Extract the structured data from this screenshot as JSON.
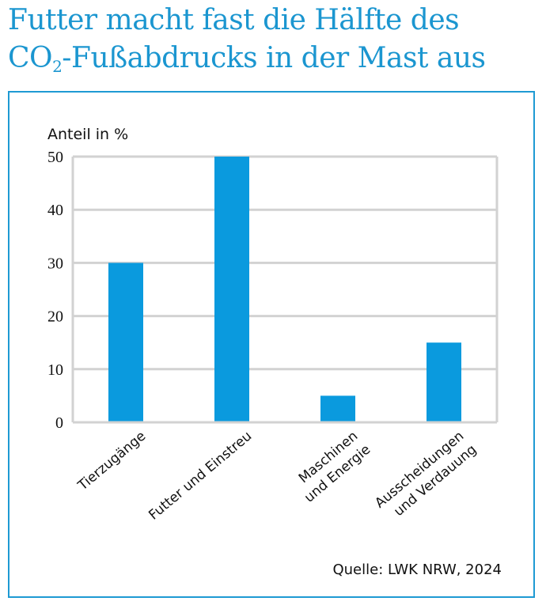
{
  "title_line1": "Futter macht fast die Hälfte des",
  "title_line2_pre": "CO",
  "title_line2_sub": "2",
  "title_line2_post": "-Fußabdrucks in der Mast aus",
  "chart_data": {
    "type": "bar",
    "ylabel": "Anteil in %",
    "ylim": [
      0,
      50
    ],
    "yticks": [
      "0",
      "10",
      "20",
      "30",
      "40",
      "50"
    ],
    "grid": true,
    "categories": [
      [
        "Tierzugänge"
      ],
      [
        "Futter und Einstreu"
      ],
      [
        "Maschinen",
        "und Energie"
      ],
      [
        "Ausscheidungen",
        "und Verdauung"
      ]
    ],
    "values": [
      30,
      50,
      5,
      15
    ],
    "bar_color": "#0a9ade",
    "source": "Quelle: LWK NRW, 2024"
  }
}
